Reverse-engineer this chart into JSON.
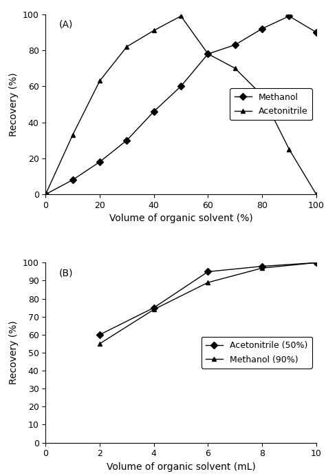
{
  "panel_A": {
    "label": "(A)",
    "methanol_x": [
      0,
      10,
      20,
      30,
      40,
      50,
      60,
      70,
      80,
      90,
      100
    ],
    "methanol_y": [
      0,
      8,
      18,
      30,
      46,
      60,
      78,
      83,
      92,
      99,
      90
    ],
    "acetonitrile_x": [
      0,
      10,
      20,
      30,
      40,
      50,
      60,
      70,
      80,
      90,
      100
    ],
    "acetonitrile_y": [
      0,
      33,
      63,
      82,
      91,
      99,
      78,
      70,
      55,
      25,
      0
    ],
    "xlabel": "Volume of organic solvent (%)",
    "ylabel": "Recovery (%)",
    "xlim": [
      0,
      100
    ],
    "ylim": [
      0,
      100
    ],
    "xticks": [
      0,
      20,
      40,
      60,
      80,
      100
    ],
    "yticks": [
      0,
      20,
      40,
      60,
      80,
      100
    ],
    "methanol_label": "Methanol",
    "acetonitrile_label": "Acetonitrile",
    "methanol_marker": "D",
    "acetonitrile_marker": "^"
  },
  "panel_B": {
    "label": "(B)",
    "acetonitrile_x": [
      2,
      4,
      6,
      8,
      10
    ],
    "acetonitrile_y": [
      60,
      75,
      95,
      98,
      100
    ],
    "methanol_x": [
      2,
      4,
      6,
      8,
      10
    ],
    "methanol_y": [
      55,
      74,
      89,
      97,
      100
    ],
    "xlabel": "Volume of organic solvent (mL)",
    "ylabel": "Recovery (%)",
    "xlim": [
      0,
      10
    ],
    "ylim": [
      0,
      100
    ],
    "xticks": [
      0,
      2,
      4,
      6,
      8,
      10
    ],
    "yticks": [
      0,
      10,
      20,
      30,
      40,
      50,
      60,
      70,
      80,
      90,
      100
    ],
    "acetonitrile_label": "Acetonitrile (50%)",
    "methanol_label": "Methanol (90%)",
    "acetonitrile_marker": "D",
    "methanol_marker": "^"
  },
  "line_color": "#000000",
  "background_color": "#ffffff",
  "tick_fontsize": 9,
  "axis_label_fontsize": 10,
  "panel_label_fontsize": 10,
  "legend_fontsize": 9,
  "marker_size": 5,
  "line_width": 1.0
}
